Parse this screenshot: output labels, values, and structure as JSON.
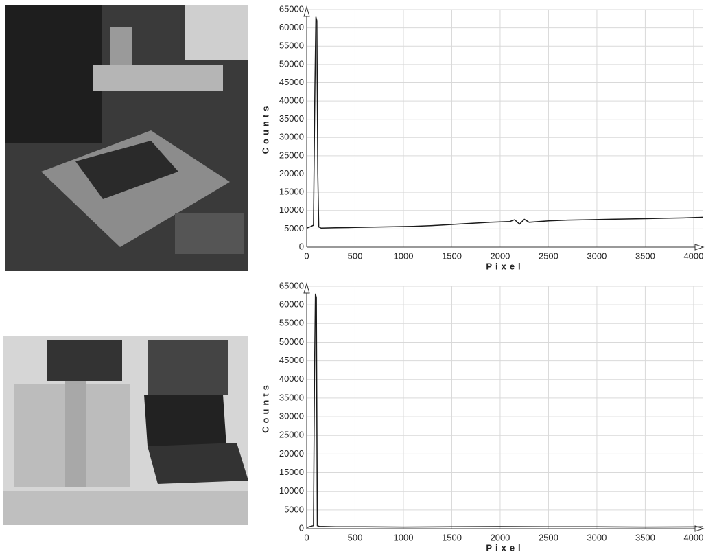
{
  "chart_data": [
    {
      "type": "line",
      "x_label": "Pixel",
      "y_label": "Counts",
      "color": "#1a1a1a",
      "grid": true,
      "xlim": [
        0,
        4100
      ],
      "ylim": [
        0,
        65000
      ],
      "xticks": [
        0,
        500,
        1000,
        1500,
        2000,
        2500,
        3000,
        3500,
        4000
      ],
      "yticks": [
        0,
        5000,
        10000,
        15000,
        20000,
        25000,
        30000,
        35000,
        40000,
        45000,
        50000,
        55000,
        60000,
        65000
      ],
      "x": [
        0,
        40,
        70,
        85,
        95,
        105,
        115,
        125,
        150,
        300,
        500,
        700,
        900,
        1100,
        1300,
        1500,
        1700,
        1900,
        2100,
        2150,
        2200,
        2250,
        2300,
        2500,
        2700,
        2900,
        3100,
        3300,
        3500,
        3700,
        3900,
        4096
      ],
      "values": [
        5200,
        5600,
        6000,
        44000,
        63000,
        62000,
        20000,
        5500,
        5200,
        5300,
        5400,
        5500,
        5600,
        5700,
        5900,
        6200,
        6500,
        6800,
        7000,
        7500,
        6300,
        7600,
        6800,
        7200,
        7400,
        7500,
        7600,
        7700,
        7800,
        7900,
        8000,
        8200
      ]
    },
    {
      "type": "line",
      "x_label": "Pixel",
      "y_label": "Counts",
      "color": "#1a1a1a",
      "grid": true,
      "xlim": [
        0,
        4100
      ],
      "ylim": [
        0,
        65000
      ],
      "xticks": [
        0,
        500,
        1000,
        1500,
        2000,
        2500,
        3000,
        3500,
        4000
      ],
      "yticks": [
        0,
        5000,
        10000,
        15000,
        20000,
        25000,
        30000,
        35000,
        40000,
        45000,
        50000,
        55000,
        60000,
        65000
      ],
      "x": [
        0,
        40,
        70,
        80,
        90,
        100,
        110,
        130,
        300,
        600,
        1000,
        1500,
        2000,
        2500,
        3000,
        3500,
        4096
      ],
      "values": [
        300,
        600,
        800,
        39000,
        63000,
        62000,
        800,
        600,
        500,
        500,
        450,
        500,
        550,
        500,
        500,
        450,
        500
      ]
    }
  ]
}
